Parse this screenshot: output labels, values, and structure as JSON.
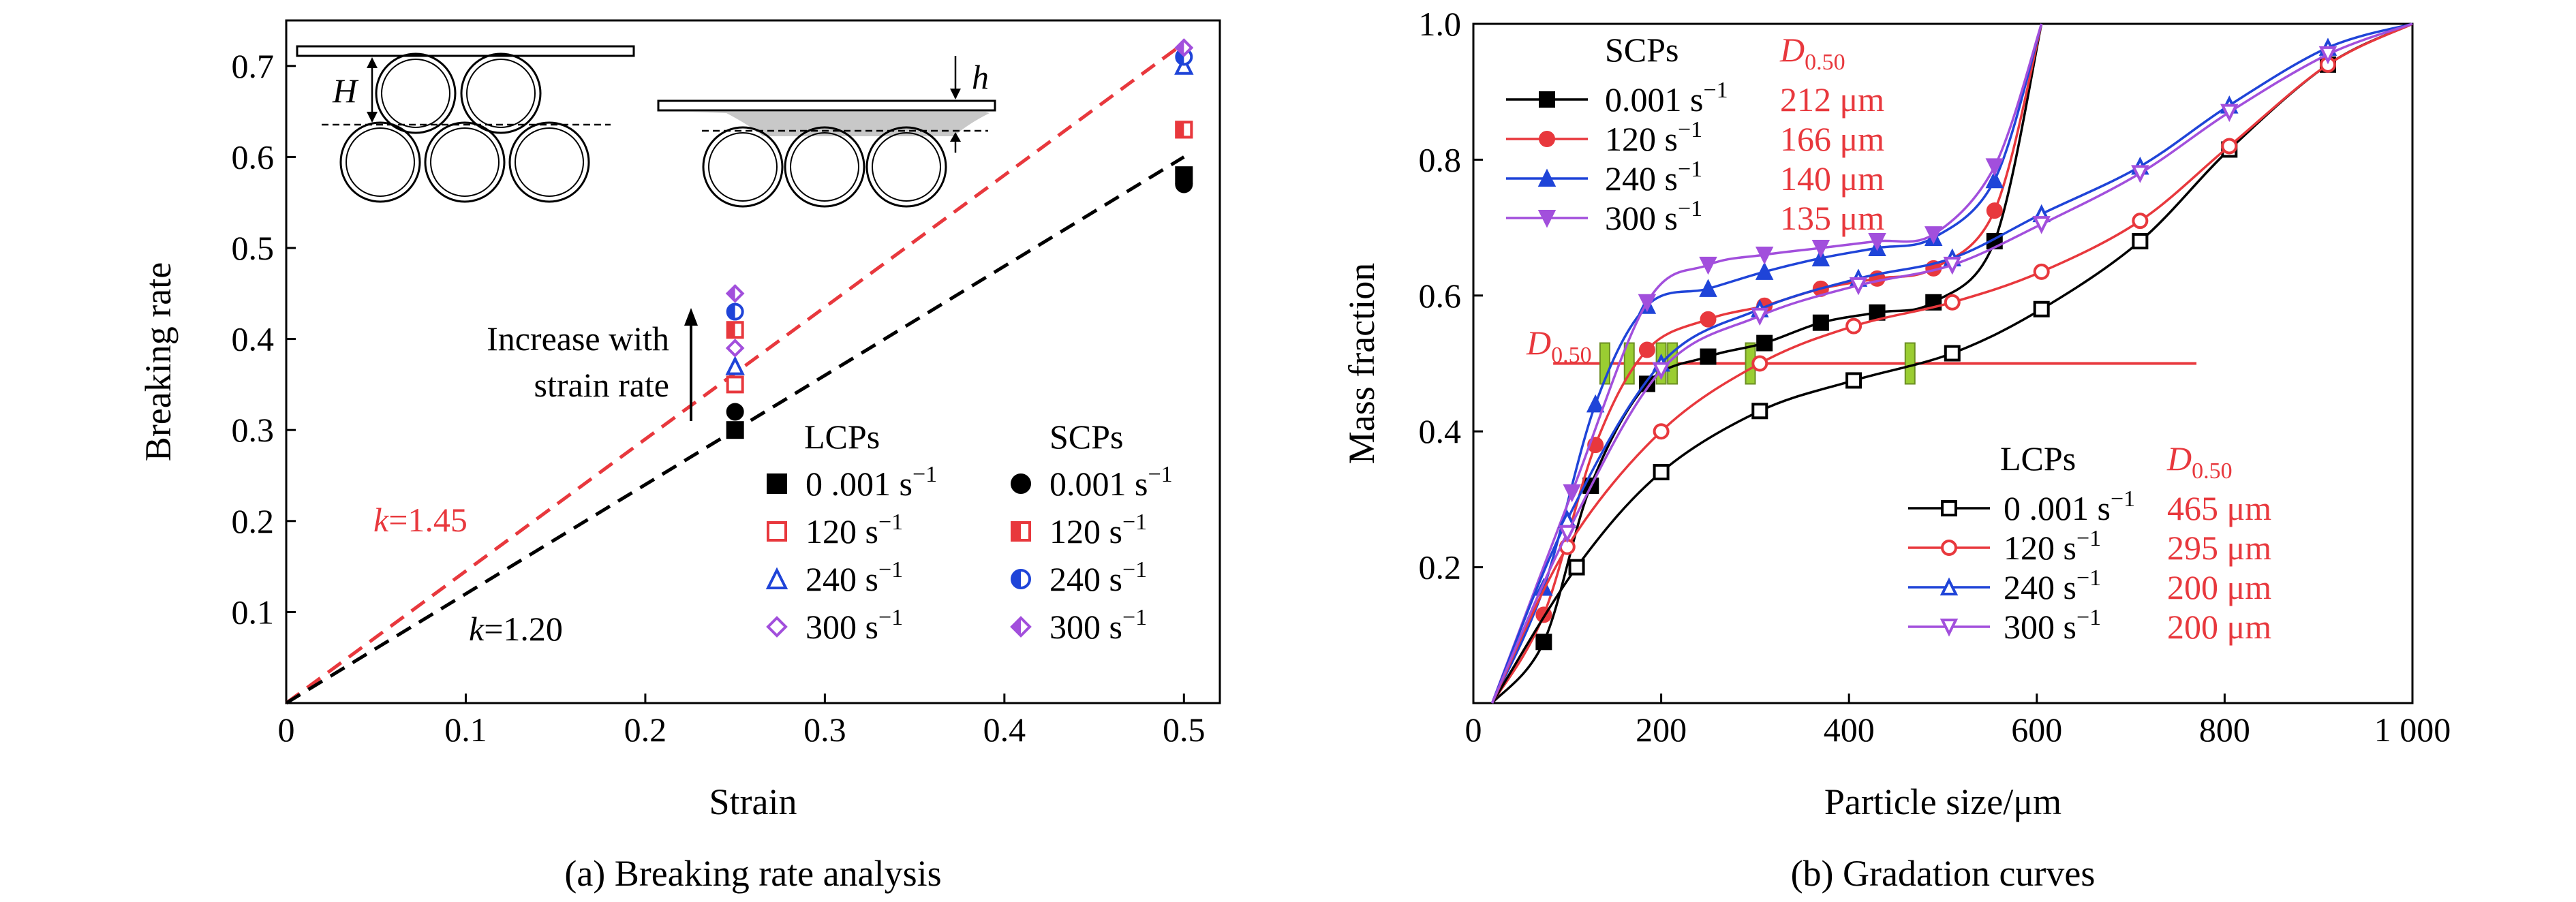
{
  "chart_data": [
    {
      "type": "scatter",
      "caption": "(a) Breaking rate analysis",
      "xlabel": "Strain",
      "ylabel": "Breaking rate",
      "xlim": [
        0,
        0.52
      ],
      "ylim": [
        0,
        0.75
      ],
      "x_ticks": [
        "0",
        "0.1",
        "0.2",
        "0.3",
        "0.4",
        "0.5"
      ],
      "y_ticks": [
        "0.1",
        "0.2",
        "0.3",
        "0.4",
        "0.5",
        "0.6",
        "0.7"
      ],
      "fit_lines": [
        {
          "label_k": "k",
          "label_val": "=1.45",
          "slope": 1.45,
          "color": "#e8383d"
        },
        {
          "label_k": "k",
          "label_val": "=1.20",
          "slope": 1.2,
          "color": "#000000"
        }
      ],
      "annotation": [
        "Increase with",
        "strain rate"
      ],
      "legend_headers": [
        "LCPs",
        "SCPs"
      ],
      "rate_labels": [
        "0 .001 s",
        "120 s",
        "240 s",
        "300 s"
      ],
      "scp_rate_labels": [
        "0.001 s",
        "120 s",
        "240 s",
        "300 s"
      ],
      "rate_sup": "−1",
      "series": [
        {
          "group": "LCPs",
          "rate": "0.001",
          "marker": "square-filled",
          "color": "#000000",
          "points": [
            [
              0.25,
              0.3
            ],
            [
              0.5,
              0.58
            ]
          ]
        },
        {
          "group": "LCPs",
          "rate": "120",
          "marker": "square-open",
          "color": "#e8383d",
          "points": [
            [
              0.25,
              0.35
            ],
            [
              0.5,
              0.63
            ]
          ]
        },
        {
          "group": "LCPs",
          "rate": "240",
          "marker": "triangle-open",
          "color": "#1f44d8",
          "points": [
            [
              0.25,
              0.37
            ],
            [
              0.5,
              0.7
            ]
          ]
        },
        {
          "group": "LCPs",
          "rate": "300",
          "marker": "diamond-open",
          "color": "#a24fdc",
          "points": [
            [
              0.25,
              0.39
            ],
            [
              0.5,
              0.72
            ]
          ]
        },
        {
          "group": "SCPs",
          "rate": "0.001",
          "marker": "circle-filled",
          "color": "#000000",
          "points": [
            [
              0.25,
              0.32
            ],
            [
              0.5,
              0.57
            ]
          ]
        },
        {
          "group": "SCPs",
          "rate": "120",
          "marker": "square-half",
          "color": "#e8383d",
          "points": [
            [
              0.25,
              0.41
            ],
            [
              0.5,
              0.63
            ]
          ]
        },
        {
          "group": "SCPs",
          "rate": "240",
          "marker": "circle-half",
          "color": "#1f44d8",
          "points": [
            [
              0.25,
              0.43
            ],
            [
              0.5,
              0.71
            ]
          ]
        },
        {
          "group": "SCPs",
          "rate": "300",
          "marker": "diamond-half",
          "color": "#a24fdc",
          "points": [
            [
              0.25,
              0.45
            ],
            [
              0.5,
              0.72
            ]
          ]
        }
      ],
      "inset_labels": {
        "left": "H",
        "right": "h"
      }
    },
    {
      "type": "line",
      "caption": "(b) Gradation curves",
      "xlabel": "Particle size/μm",
      "ylabel": "Mass fraction",
      "xlim": [
        0,
        1000
      ],
      "ylim": [
        0,
        1.0
      ],
      "x_ticks": [
        "0",
        "200",
        "400",
        "600",
        "800",
        "1 000"
      ],
      "y_ticks": [
        "0.2",
        "0.4",
        "0.6",
        "0.8",
        "1.0"
      ],
      "d50_label": "D",
      "d50_sub": "0.50",
      "d50_level": 0.5,
      "d50_markers": [
        140,
        166,
        200,
        212,
        295,
        465
      ],
      "legend_scp_header": "SCPs",
      "legend_lcp_header": "LCPs",
      "legend_d_header": "D",
      "legend_d_sub": "0.50",
      "scp_rate_labels": [
        "0.001 s",
        "120 s",
        "240 s",
        "300 s"
      ],
      "lcp_rate_labels": [
        "0 .001 s",
        "120 s",
        "240 s",
        "300 s"
      ],
      "rate_sup": "−1",
      "series": [
        {
          "group": "SCPs",
          "name": "0.001 s-1",
          "d50": "212 μm",
          "color": "#000000",
          "marker": "square-filled",
          "x": [
            20,
            75,
            125,
            185,
            250,
            310,
            370,
            430,
            490,
            555,
            605
          ],
          "y": [
            0.0,
            0.09,
            0.32,
            0.47,
            0.51,
            0.53,
            0.56,
            0.575,
            0.59,
            0.68,
            1.0
          ]
        },
        {
          "group": "SCPs",
          "name": "120 s-1",
          "d50": "166 μm",
          "color": "#e8383d",
          "marker": "circle-filled",
          "x": [
            20,
            75,
            130,
            185,
            250,
            310,
            370,
            430,
            490,
            555,
            605
          ],
          "y": [
            0.0,
            0.13,
            0.38,
            0.52,
            0.565,
            0.585,
            0.61,
            0.625,
            0.64,
            0.725,
            1.0
          ]
        },
        {
          "group": "SCPs",
          "name": "240 s-1",
          "d50": "140 μm",
          "color": "#1f44d8",
          "marker": "triangle-filled",
          "x": [
            20,
            75,
            130,
            185,
            250,
            310,
            370,
            430,
            490,
            555,
            605
          ],
          "y": [
            0.0,
            0.17,
            0.44,
            0.585,
            0.61,
            0.635,
            0.655,
            0.67,
            0.685,
            0.77,
            1.0
          ]
        },
        {
          "group": "SCPs",
          "name": "300 s-1",
          "d50": "135 μm",
          "color": "#a24fdc",
          "marker": "triangledown-filled",
          "x": [
            20,
            105,
            185,
            250,
            310,
            370,
            430,
            490,
            555,
            605
          ],
          "y": [
            0.0,
            0.31,
            0.59,
            0.645,
            0.66,
            0.67,
            0.68,
            0.69,
            0.79,
            1.0
          ]
        },
        {
          "group": "LCPs",
          "name": "0 .001 s-1",
          "d50": "465 μm",
          "color": "#000000",
          "marker": "square-open",
          "x": [
            20,
            110,
            200,
            305,
            405,
            510,
            605,
            710,
            805,
            910,
            1000
          ],
          "y": [
            0.0,
            0.2,
            0.34,
            0.43,
            0.475,
            0.515,
            0.58,
            0.68,
            0.815,
            0.94,
            1.0
          ]
        },
        {
          "group": "LCPs",
          "name": "120 s-1",
          "d50": "295 μm",
          "color": "#e8383d",
          "marker": "circle-open",
          "x": [
            20,
            100,
            200,
            305,
            405,
            510,
            605,
            710,
            805,
            910,
            1000
          ],
          "y": [
            0.0,
            0.23,
            0.4,
            0.5,
            0.555,
            0.59,
            0.635,
            0.71,
            0.82,
            0.94,
            1.0
          ]
        },
        {
          "group": "LCPs",
          "name": "240 s-1",
          "d50": "200 μm",
          "color": "#1f44d8",
          "marker": "triangle-open",
          "x": [
            20,
            100,
            200,
            305,
            410,
            510,
            605,
            710,
            805,
            910,
            1000
          ],
          "y": [
            0.0,
            0.27,
            0.5,
            0.58,
            0.625,
            0.655,
            0.72,
            0.79,
            0.88,
            0.965,
            1.0
          ]
        },
        {
          "group": "LCPs",
          "name": "300 s-1",
          "d50": "200 μm",
          "color": "#a24fdc",
          "marker": "triangledown-open",
          "x": [
            20,
            100,
            200,
            305,
            410,
            510,
            605,
            710,
            805,
            910,
            1000
          ],
          "y": [
            0.0,
            0.25,
            0.49,
            0.57,
            0.615,
            0.645,
            0.705,
            0.78,
            0.87,
            0.955,
            1.0
          ]
        }
      ]
    }
  ]
}
